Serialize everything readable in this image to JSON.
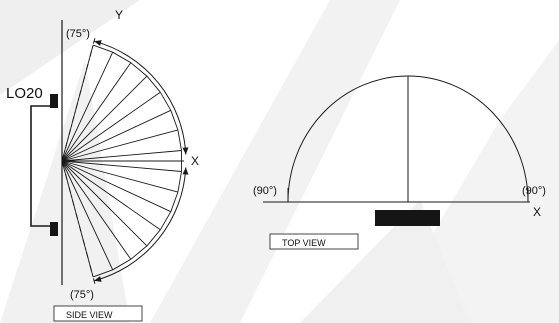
{
  "side_view": {
    "device_label": "LO20",
    "axis_y_label": "Y",
    "axis_x_label": "X",
    "angle_top_label": "(75°)",
    "angle_bottom_label": "(75°)",
    "view_label": "SIDE VIEW"
  },
  "top_view": {
    "angle_left_label": "(90°)",
    "angle_right_label": "(90°)",
    "axis_x_label": "X",
    "view_label": "TOP VIEW"
  },
  "colors": {
    "watermark": "#ececec",
    "line": "#1a1a1a",
    "fill_dark": "#151515"
  }
}
